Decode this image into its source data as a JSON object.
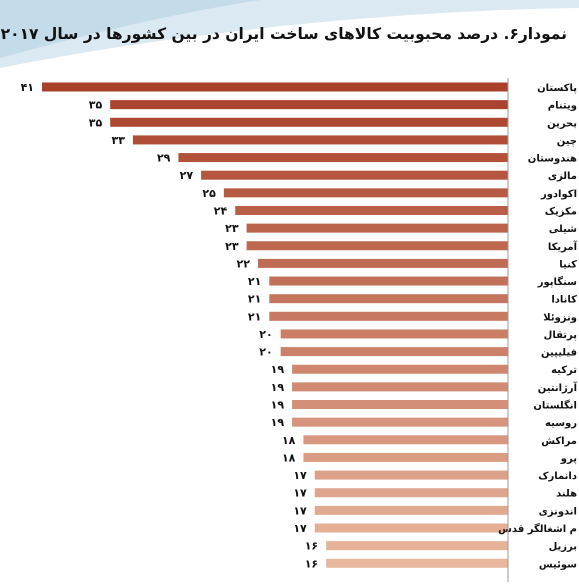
{
  "chart_data": {
    "type": "bar",
    "orientation": "horizontal",
    "title": "نمودار۶. درصد محبوبیت کالاهای ساخت ایران در بین کشورها در سال ۲۰۱۷",
    "categories": [
      "پاکستان",
      "ویتنام",
      "بحرین",
      "چین",
      "هندوستان",
      "مالزی",
      "اکوادور",
      "مکزیک",
      "شیلی",
      "آمریکا",
      "کنیا",
      "سنگاپور",
      "کانادا",
      "ونزوئلا",
      "پرتقال",
      "فیلیپین",
      "ترکیه",
      "آرژانتین",
      "انگلستان",
      "روسیه",
      "مراکش",
      "پرو",
      "دانمارک",
      "هلند",
      "اندونزی",
      "م اشغالگر قدس",
      "برزیل",
      "سوئیس"
    ],
    "values": [
      41,
      35,
      35,
      33,
      29,
      27,
      25,
      24,
      23,
      23,
      22,
      21,
      21,
      21,
      20,
      20,
      19,
      19,
      19,
      19,
      18,
      18,
      17,
      17,
      17,
      17,
      16,
      16
    ],
    "value_labels": [
      "۴۱",
      "۳۵",
      "۳۵",
      "۳۳",
      "۲۹",
      "۲۷",
      "۲۵",
      "۲۴",
      "۲۳",
      "۲۳",
      "۲۲",
      "۲۱",
      "۲۱",
      "۲۱",
      "۲۰",
      "۲۰",
      "۱۹",
      "۱۹",
      "۱۹",
      "۱۹",
      "۱۸",
      "۱۸",
      "۱۷",
      "۱۷",
      "۱۷",
      "۱۷",
      "۱۶",
      "۱۶"
    ],
    "xlim": [
      0,
      41
    ],
    "bar_color_start": "#a9402a",
    "bar_color_end": "#e8b79d",
    "xlabel": "",
    "ylabel": "",
    "grid": false,
    "legend": "none"
  },
  "colors": {
    "header_band": "#cfe3ef",
    "header_band_light": "#eef5fa",
    "axis": "#999999",
    "text": "#111111"
  }
}
